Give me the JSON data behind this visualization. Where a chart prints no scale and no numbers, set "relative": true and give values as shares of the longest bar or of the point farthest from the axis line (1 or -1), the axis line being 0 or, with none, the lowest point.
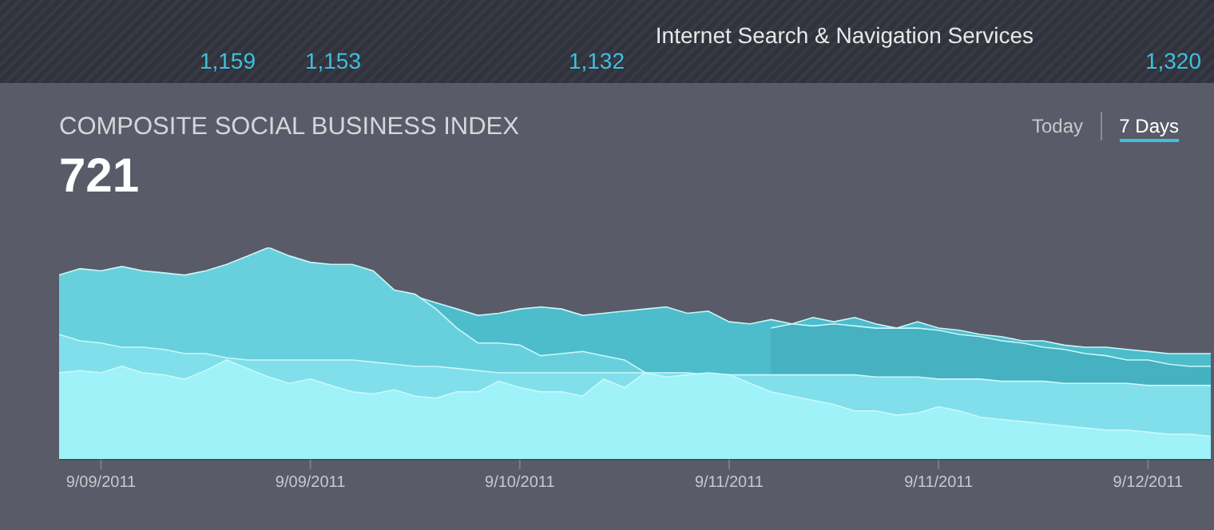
{
  "chart_data": {
    "type": "area",
    "title": "COMPOSITE SOCIAL BUSINESS INDEX",
    "subtitle": "721",
    "relative": true,
    "annotations": [
      "1,159",
      "1,153",
      "1,132",
      "Internet Search & Navigation Services",
      "1,320",
      "Today",
      "7 Days"
    ],
    "categories": [
      null,
      null,
      "9/09/2011",
      null,
      null,
      null,
      null,
      null,
      null,
      null,
      null,
      null,
      "9/09/2011",
      null,
      null,
      null,
      null,
      null,
      null,
      null,
      null,
      null,
      "9/10/2011",
      null,
      null,
      null,
      null,
      null,
      null,
      null,
      null,
      null,
      "9/11/2011",
      null,
      null,
      null,
      null,
      null,
      null,
      null,
      null,
      null,
      "9/11/2011",
      null,
      null,
      null,
      null,
      null,
      null,
      null,
      null,
      null,
      "9/12/2011",
      null,
      null,
      null
    ],
    "series": [
      {
        "color": "#4dbccb",
        "values": [
          null,
          null,
          null,
          null,
          null,
          null,
          null,
          null,
          null,
          null,
          null,
          null,
          null,
          null,
          null,
          null,
          null,
          0.77,
          0.74,
          0.71,
          0.68,
          0.69,
          0.71,
          0.72,
          0.71,
          0.68,
          0.69,
          0.7,
          0.71,
          0.72,
          0.69,
          0.7,
          0.65,
          0.64,
          0.66,
          0.64,
          0.67,
          0.65,
          0.67,
          0.64,
          0.62,
          0.65,
          0.62,
          0.61,
          0.59,
          0.58,
          0.56,
          0.56,
          0.54,
          0.53,
          0.53,
          0.52,
          0.51,
          0.5,
          0.5,
          0.5
        ]
      },
      {
        "color": "#45b1c1",
        "values": [
          null,
          null,
          null,
          null,
          null,
          null,
          null,
          null,
          null,
          null,
          null,
          null,
          null,
          null,
          null,
          null,
          null,
          null,
          null,
          null,
          null,
          null,
          null,
          null,
          null,
          null,
          null,
          null,
          null,
          null,
          null,
          null,
          null,
          null,
          0.62,
          0.64,
          0.63,
          0.64,
          0.63,
          0.62,
          0.62,
          0.62,
          0.61,
          0.59,
          0.58,
          0.56,
          0.55,
          0.53,
          0.52,
          0.5,
          0.49,
          0.47,
          0.47,
          0.45,
          0.44,
          0.44
        ]
      },
      {
        "color": "#68d0dc",
        "values": [
          0.87,
          0.9,
          0.89,
          0.91,
          0.89,
          0.88,
          0.87,
          0.89,
          0.92,
          0.96,
          1.0,
          0.96,
          0.93,
          0.92,
          0.92,
          0.89,
          0.8,
          0.78,
          0.71,
          0.62,
          0.55,
          0.55,
          0.54,
          0.49,
          0.5,
          0.51,
          0.49,
          0.47,
          0.41,
          null,
          null,
          null,
          null,
          null,
          null,
          null,
          null,
          null,
          null,
          null,
          null,
          null,
          null,
          null,
          null,
          null,
          null,
          null,
          null,
          null,
          null,
          null,
          null,
          null,
          null,
          null
        ]
      },
      {
        "color": "#80dfea",
        "values": [
          0.59,
          0.56,
          0.55,
          0.53,
          0.53,
          0.52,
          0.5,
          0.5,
          0.48,
          0.47,
          0.47,
          0.47,
          0.47,
          0.47,
          0.47,
          0.46,
          0.45,
          0.44,
          0.44,
          0.43,
          0.42,
          0.41,
          0.41,
          0.41,
          0.41,
          0.41,
          0.41,
          0.41,
          0.41,
          0.41,
          0.41,
          0.4,
          0.4,
          0.4,
          0.4,
          0.4,
          0.4,
          0.4,
          0.4,
          0.39,
          0.39,
          0.39,
          0.38,
          0.38,
          0.38,
          0.37,
          0.37,
          0.37,
          0.36,
          0.36,
          0.36,
          0.36,
          0.35,
          0.35,
          0.35,
          0.35
        ]
      },
      {
        "color": "#9ef2f8",
        "values": [
          0.41,
          0.42,
          0.41,
          0.44,
          0.41,
          0.4,
          0.38,
          0.42,
          0.47,
          0.43,
          0.39,
          0.36,
          0.38,
          0.35,
          0.32,
          0.31,
          0.33,
          0.3,
          0.29,
          0.32,
          0.32,
          0.37,
          0.34,
          0.32,
          0.32,
          0.3,
          0.38,
          0.34,
          0.41,
          0.39,
          0.4,
          0.41,
          0.4,
          0.36,
          0.32,
          0.3,
          0.28,
          0.26,
          0.23,
          0.23,
          0.21,
          0.22,
          0.25,
          0.23,
          0.2,
          0.19,
          0.18,
          0.17,
          0.16,
          0.15,
          0.14,
          0.14,
          0.13,
          0.12,
          0.12,
          0.11
        ]
      }
    ]
  }
}
